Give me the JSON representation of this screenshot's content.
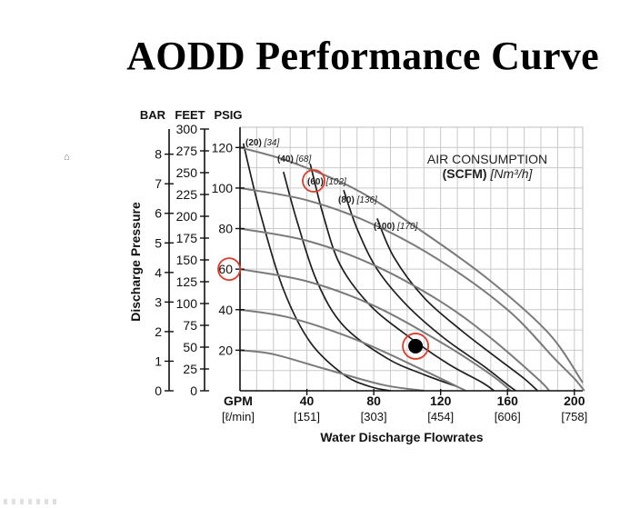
{
  "page": {
    "title": "AODD Performance Curve"
  },
  "chart_data": {
    "type": "line",
    "title": "AODD Performance Curve",
    "xlabel": "Water Discharge Flowrates",
    "ylabel": "Discharge Pressure",
    "xlim": [
      0,
      205
    ],
    "ylim": [
      0,
      130
    ],
    "grid": true,
    "axes_left": {
      "bar": {
        "header": "BAR",
        "ticks": [
          "0",
          "1",
          "2",
          "3",
          "4",
          "5",
          "6",
          "7",
          "8"
        ],
        "values": [
          0,
          1,
          2,
          3,
          4,
          5,
          6,
          7,
          8
        ]
      },
      "feet": {
        "header": "FEET",
        "ticks": [
          "0",
          "25",
          "50",
          "75",
          "100",
          "125",
          "150",
          "175",
          "200",
          "225",
          "250",
          "275",
          "300"
        ],
        "values": [
          0,
          25,
          50,
          75,
          100,
          125,
          150,
          175,
          200,
          225,
          250,
          275,
          300
        ]
      },
      "psig": {
        "header": "PSIG",
        "ticks": [
          "20",
          "40",
          "60",
          "80",
          "100",
          "120"
        ],
        "values": [
          20,
          40,
          60,
          80,
          100,
          120
        ]
      }
    },
    "x_axis": {
      "unit_top": "GPM",
      "unit_bottom": "[ℓ/min]",
      "ticks": [
        {
          "gpm": 40,
          "gpm_label": "40",
          "lpm_label": "[151]"
        },
        {
          "gpm": 80,
          "gpm_label": "80",
          "lpm_label": "[303]"
        },
        {
          "gpm": 120,
          "gpm_label": "120",
          "lpm_label": "[454]"
        },
        {
          "gpm": 160,
          "gpm_label": "160",
          "lpm_label": "[606]"
        },
        {
          "gpm": 200,
          "gpm_label": "200",
          "lpm_label": "[758]"
        }
      ]
    },
    "annotation": {
      "line1": "AIR CONSUMPTION",
      "line2_bold": "(SCFM)",
      "line2_italic": "[Nm³/h]"
    },
    "air_curves": [
      {
        "label_bold": "(20)",
        "label_italic": "[34]",
        "points": [
          [
            0,
            20
          ],
          [
            20,
            18
          ],
          [
            50,
            11
          ],
          [
            85,
            3
          ],
          [
            110,
            0
          ]
        ]
      },
      {
        "label_bold": "(40)",
        "label_italic": "[68]",
        "points": [
          [
            0,
            40
          ],
          [
            30,
            36
          ],
          [
            70,
            25
          ],
          [
            110,
            10
          ],
          [
            135,
            0
          ]
        ]
      },
      {
        "label_bold": "(60)",
        "label_italic": "[102]",
        "points": [
          [
            0,
            60
          ],
          [
            40,
            54
          ],
          [
            80,
            42
          ],
          [
            120,
            24
          ],
          [
            150,
            8
          ],
          [
            162,
            0
          ]
        ]
      },
      {
        "label_bold": "(80)",
        "label_italic": "[136]",
        "points": [
          [
            0,
            80
          ],
          [
            40,
            74
          ],
          [
            80,
            62
          ],
          [
            120,
            44
          ],
          [
            150,
            26
          ],
          [
            178,
            6
          ],
          [
            185,
            0
          ]
        ]
      },
      {
        "label_bold": "(100)",
        "label_italic": "[170]",
        "points": [
          [
            0,
            100
          ],
          [
            40,
            94
          ],
          [
            80,
            82
          ],
          [
            120,
            64
          ],
          [
            160,
            40
          ],
          [
            188,
            16
          ],
          [
            200,
            6
          ],
          [
            206,
            0
          ]
        ]
      },
      {
        "label_bold": "",
        "label_italic": "",
        "points": [
          [
            0,
            120
          ],
          [
            30,
            113
          ],
          [
            70,
            99
          ],
          [
            110,
            78
          ],
          [
            150,
            54
          ],
          [
            185,
            28
          ],
          [
            205,
            4
          ]
        ]
      }
    ],
    "ghost_curves": [
      {
        "points": [
          [
            2,
            122
          ],
          [
            12,
            88
          ],
          [
            26,
            50
          ],
          [
            42,
            24
          ],
          [
            62,
            8
          ],
          [
            78,
            2
          ],
          [
            90,
            0
          ]
        ]
      },
      {
        "points": [
          [
            26,
            108
          ],
          [
            34,
            84
          ],
          [
            46,
            54
          ],
          [
            62,
            32
          ],
          [
            88,
            16
          ],
          [
            110,
            8
          ],
          [
            130,
            2
          ]
        ]
      },
      {
        "points": [
          [
            42,
            112
          ],
          [
            50,
            86
          ],
          [
            60,
            62
          ],
          [
            78,
            42
          ],
          [
            102,
            26
          ],
          [
            125,
            13
          ],
          [
            145,
            4
          ],
          [
            152,
            0
          ]
        ]
      },
      {
        "points": [
          [
            62,
            99
          ],
          [
            70,
            80
          ],
          [
            82,
            60
          ],
          [
            100,
            42
          ],
          [
            122,
            26
          ],
          [
            146,
            12
          ],
          [
            160,
            3
          ],
          [
            165,
            0
          ]
        ]
      },
      {
        "points": [
          [
            82,
            85
          ],
          [
            92,
            66
          ],
          [
            110,
            46
          ],
          [
            132,
            30
          ],
          [
            154,
            16
          ],
          [
            170,
            6
          ],
          [
            178,
            0
          ]
        ]
      }
    ],
    "highlights": [
      {
        "type": "circle",
        "target": "psig_tick",
        "value": 60
      },
      {
        "type": "circle",
        "target": "curve_label",
        "label": "(60)"
      },
      {
        "type": "operating_point",
        "x": 105,
        "y": 22
      }
    ],
    "colors": {
      "line": "#3a3a3a",
      "grid": "#c9c9c9",
      "axis": "#111111",
      "highlight": "#e03a2a",
      "point": "#000000"
    }
  }
}
